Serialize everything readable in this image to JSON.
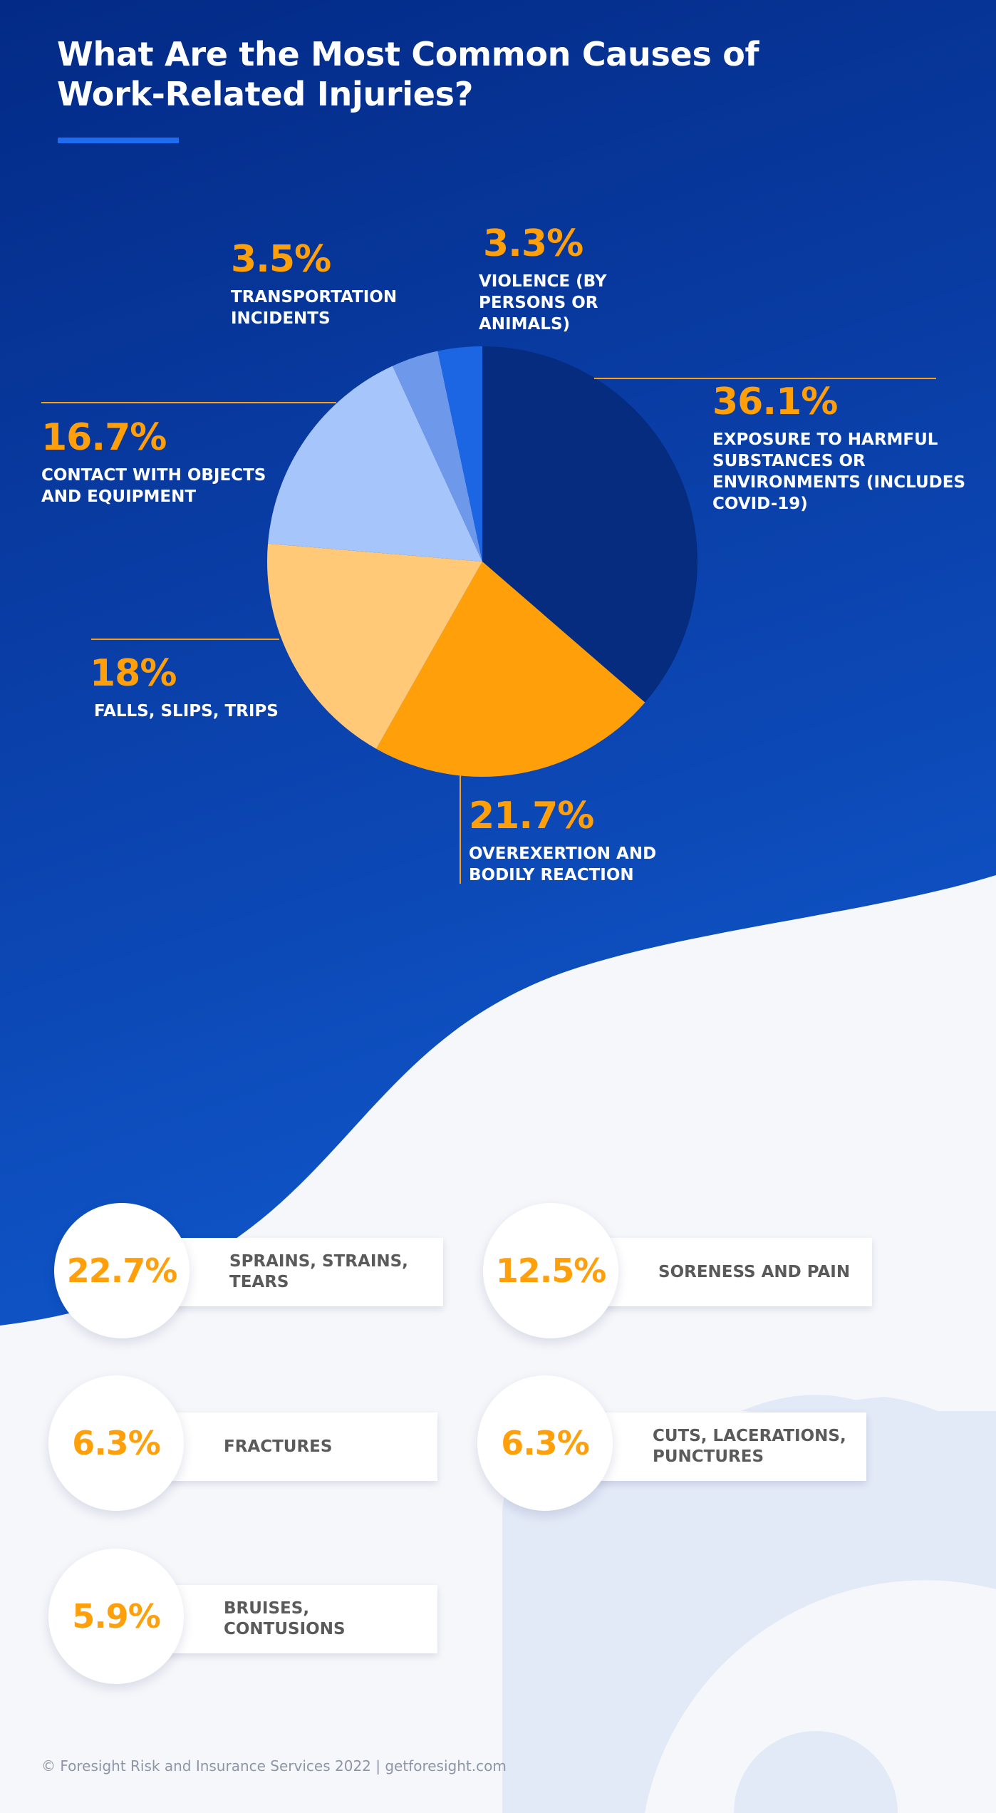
{
  "title": "What Are the Most Common Causes of Work-Related Injuries?",
  "chart_data": [
    {
      "type": "pie",
      "title": "What Are the Most Common Causes of Work-Related Injuries?",
      "slices": [
        {
          "label": "EXPOSURE TO HARMFUL SUBSTANCES OR ENVIRONMENTS (INCLUDES COVID-19)",
          "value": 36.1,
          "display": "36.1%",
          "color": "#052c7e"
        },
        {
          "label": "OVEREXERTION AND BODILY REACTION",
          "value": 21.7,
          "display": "21.7%",
          "color": "#ff9f0a"
        },
        {
          "label": "FALLS, SLIPS, TRIPS",
          "value": 18,
          "display": "18%",
          "color": "#ffc978"
        },
        {
          "label": "CONTACT WITH OBJECTS AND EQUIPMENT",
          "value": 16.7,
          "display": "16.7%",
          "color": "#a6c6fb"
        },
        {
          "label": "TRANSPORTATION INCIDENTS",
          "value": 3.5,
          "display": "3.5%",
          "color": "#6e98ea"
        },
        {
          "label": "VIOLENCE (BY PERSONS OR ANIMALS)",
          "value": 3.3,
          "display": "3.3%",
          "color": "#1c66e4"
        }
      ]
    },
    {
      "type": "table",
      "items": [
        {
          "label": "SPRAINS, STRAINS, TEARS",
          "value": 22.7,
          "display": "22.7%"
        },
        {
          "label": "SORENESS AND PAIN",
          "value": 12.5,
          "display": "12.5%"
        },
        {
          "label": "FRACTURES",
          "value": 6.3,
          "display": "6.3%"
        },
        {
          "label": "CUTS, LACERATIONS, PUNCTURES",
          "value": 6.3,
          "display": "6.3%"
        },
        {
          "label": "BRUISES, CONTUSIONS",
          "value": 5.9,
          "display": "5.9%"
        }
      ]
    }
  ],
  "colors": {
    "accent": "#ff9f0a",
    "background_dark": "#0a3a99",
    "background_light": "#f6f7fb"
  },
  "footer": "© Foresight Risk and Insurance Services 2022 | getforesight.com"
}
